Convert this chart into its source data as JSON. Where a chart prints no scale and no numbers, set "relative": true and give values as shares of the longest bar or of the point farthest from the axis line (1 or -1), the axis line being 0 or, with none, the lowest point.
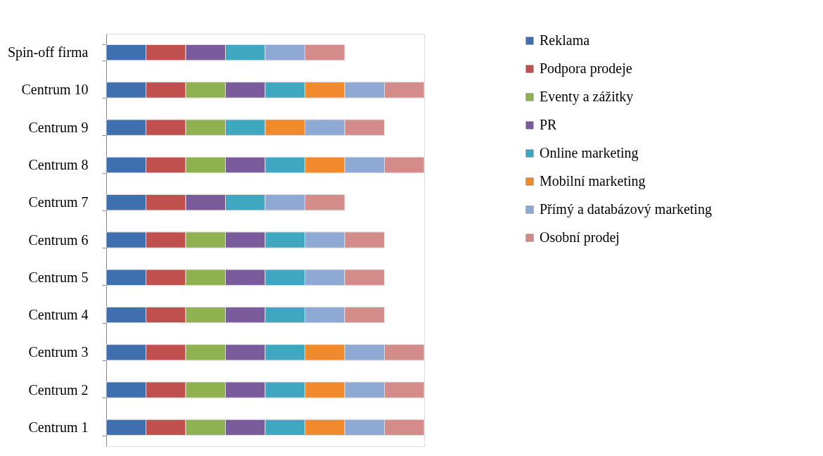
{
  "chart_data": {
    "type": "bar",
    "orientation": "horizontal",
    "stacked": true,
    "relative": true,
    "legend": "right",
    "categories": [
      "Spin-off firma",
      "Centrum 10",
      "Centrum 9",
      "Centrum 8",
      "Centrum 7",
      "Centrum 6",
      "Centrum 5",
      "Centrum 4",
      "Centrum 3",
      "Centrum 2",
      "Centrum 1"
    ],
    "series": [
      {
        "name": "Reklama",
        "color": "#3f6fae",
        "values": [
          0.125,
          0.125,
          0.125,
          0.125,
          0.125,
          0.125,
          0.125,
          0.125,
          0.125,
          0.125,
          0.125
        ]
      },
      {
        "name": "Podpora prodeje",
        "color": "#c0504d",
        "values": [
          0.125,
          0.125,
          0.125,
          0.125,
          0.125,
          0.125,
          0.125,
          0.125,
          0.125,
          0.125,
          0.125
        ]
      },
      {
        "name": "Eventy a zážitky",
        "color": "#8fb14f",
        "values": [
          null,
          0.125,
          0.125,
          0.125,
          null,
          0.125,
          0.125,
          0.125,
          0.125,
          0.125,
          0.125
        ]
      },
      {
        "name": "PR",
        "color": "#7a5c9c",
        "values": [
          0.125,
          0.125,
          null,
          0.125,
          0.125,
          0.125,
          0.125,
          0.125,
          0.125,
          0.125,
          0.125
        ]
      },
      {
        "name": "Online marketing",
        "color": "#3fa7c0",
        "values": [
          0.125,
          0.125,
          0.125,
          0.125,
          0.125,
          0.125,
          0.125,
          0.125,
          0.125,
          0.125,
          0.125
        ]
      },
      {
        "name": "Mobilní marketing",
        "color": "#f08a2c",
        "values": [
          null,
          0.125,
          0.125,
          0.125,
          null,
          null,
          null,
          null,
          0.125,
          0.125,
          0.125
        ]
      },
      {
        "name": "Přímý a databázový marketing",
        "color": "#8eaad4",
        "values": [
          0.125,
          0.125,
          0.125,
          0.125,
          0.125,
          0.125,
          0.125,
          0.125,
          0.125,
          0.125,
          0.125
        ]
      },
      {
        "name": "Osobní prodej",
        "color": "#d48c8a",
        "values": [
          0.125,
          0.125,
          0.125,
          0.125,
          0.125,
          0.125,
          0.125,
          0.125,
          0.125,
          0.125,
          0.125
        ]
      }
    ]
  }
}
